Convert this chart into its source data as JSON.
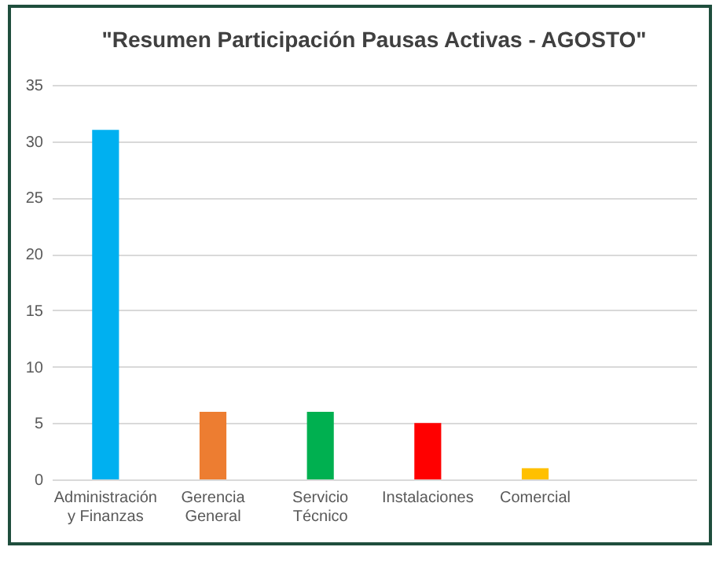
{
  "chart_data": {
    "type": "bar",
    "title": "\"Resumen Participación Pausas Activas - AGOSTO\"",
    "categories": [
      "Administración y Finanzas",
      "Gerencia General",
      "Servicio Técnico",
      "Instalaciones",
      "Comercial",
      null
    ],
    "values": [
      31,
      6,
      6,
      5,
      1,
      null
    ],
    "colors": [
      "#00b0f0",
      "#ed7d31",
      "#00b050",
      "#ff0000",
      "#ffc000",
      "#ffffff"
    ],
    "ylim": [
      0,
      35
    ],
    "yticks": [
      0,
      5,
      10,
      15,
      20,
      25,
      30,
      35
    ],
    "grid": "y"
  }
}
